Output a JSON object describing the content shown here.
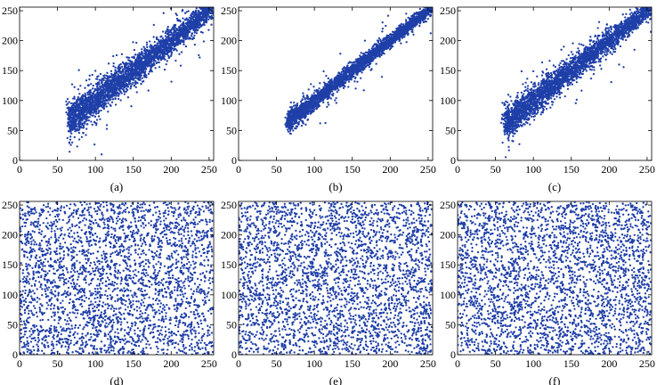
{
  "figure": {
    "marker_color": "#1f3fa8",
    "axis_color": "#000000",
    "panels_per_row": 3,
    "points_per_panel": 3000
  },
  "chart_data": [
    {
      "type": "scatter",
      "label": "(a)",
      "pattern": "correlated",
      "spread": 15,
      "xlim": [
        0,
        256
      ],
      "ylim": [
        0,
        256
      ],
      "xticks": [
        0,
        50,
        100,
        150,
        200,
        250
      ],
      "yticks": [
        0,
        50,
        100,
        150,
        200,
        250
      ],
      "data_range": [
        65,
        255
      ],
      "grid": false,
      "legend": "none"
    },
    {
      "type": "scatter",
      "label": "(b)",
      "pattern": "correlated",
      "spread": 8,
      "xlim": [
        0,
        256
      ],
      "ylim": [
        0,
        256
      ],
      "xticks": [
        0,
        50,
        100,
        150,
        200,
        250
      ],
      "yticks": [
        0,
        50,
        100,
        150,
        200,
        250
      ],
      "data_range": [
        65,
        255
      ],
      "grid": false,
      "legend": "none"
    },
    {
      "type": "scatter",
      "label": "(c)",
      "pattern": "correlated",
      "spread": 14,
      "xlim": [
        0,
        256
      ],
      "ylim": [
        0,
        256
      ],
      "xticks": [
        0,
        50,
        100,
        150,
        200,
        250
      ],
      "yticks": [
        0,
        50,
        100,
        150,
        200,
        250
      ],
      "data_range": [
        62,
        255
      ],
      "grid": false,
      "legend": "none"
    },
    {
      "type": "scatter",
      "label": "(d)",
      "pattern": "uniform",
      "xlim": [
        0,
        256
      ],
      "ylim": [
        0,
        256
      ],
      "xticks": [
        0,
        50,
        100,
        150,
        200,
        250
      ],
      "yticks": [
        0,
        50,
        100,
        150,
        200,
        250
      ],
      "data_range": [
        0,
        255
      ],
      "grid": false,
      "legend": "none"
    },
    {
      "type": "scatter",
      "label": "(e)",
      "pattern": "uniform",
      "xlim": [
        0,
        256
      ],
      "ylim": [
        0,
        256
      ],
      "xticks": [
        0,
        50,
        100,
        150,
        200,
        250
      ],
      "yticks": [
        0,
        50,
        100,
        150,
        200,
        250
      ],
      "data_range": [
        0,
        255
      ],
      "grid": false,
      "legend": "none"
    },
    {
      "type": "scatter",
      "label": "(f)",
      "pattern": "uniform",
      "xlim": [
        0,
        256
      ],
      "ylim": [
        0,
        256
      ],
      "xticks": [
        0,
        50,
        100,
        150,
        200,
        250
      ],
      "yticks": [
        0,
        50,
        100,
        150,
        200,
        250
      ],
      "data_range": [
        0,
        255
      ],
      "grid": false,
      "legend": "none"
    }
  ]
}
